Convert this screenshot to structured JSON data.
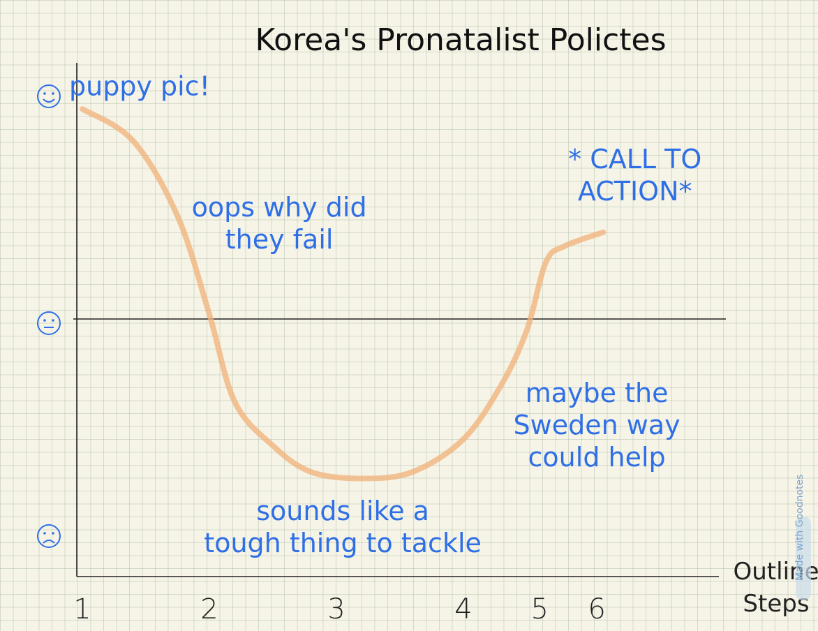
{
  "chart_data": {
    "type": "line",
    "title": "Korea's Pronatalist Polictes",
    "xlabel": "Outline Steps",
    "x_ticks": [
      "1",
      "2",
      "3",
      "4",
      "5",
      "6"
    ],
    "y_levels": [
      {
        "name": "happy-face",
        "value": 1
      },
      {
        "name": "neutral-face",
        "value": 0
      },
      {
        "name": "sad-face",
        "value": -1
      }
    ],
    "ylim": [
      -1.15,
      1.15
    ],
    "xlim": [
      1,
      6.1
    ],
    "series": [
      {
        "color": "#f0b27a",
        "points": [
          [
            1.0,
            0.92
          ],
          [
            1.4,
            0.78
          ],
          [
            1.75,
            0.45
          ],
          [
            2.0,
            0.02
          ],
          [
            2.2,
            -0.38
          ],
          [
            2.5,
            -0.58
          ],
          [
            2.8,
            -0.7
          ],
          [
            3.2,
            -0.73
          ],
          [
            3.6,
            -0.7
          ],
          [
            4.0,
            -0.55
          ],
          [
            4.3,
            -0.3
          ],
          [
            4.5,
            -0.05
          ],
          [
            4.65,
            0.25
          ],
          [
            4.8,
            0.32
          ],
          [
            5.1,
            0.38
          ]
        ]
      }
    ],
    "annotations": [
      {
        "lines": [
          "puppy pic!"
        ],
        "x": 1.45,
        "y": 0.98
      },
      {
        "lines": [
          "oops why did",
          "they fail"
        ],
        "x": 2.55,
        "y": 0.45
      },
      {
        "lines": [
          "sounds like a",
          "tough thing to tackle"
        ],
        "x": 3.05,
        "y": -0.92
      },
      {
        "lines": [
          "maybe the",
          "Sweden way",
          "could help"
        ],
        "x": 5.05,
        "y": -0.38
      },
      {
        "lines": [
          "* CALL TO",
          "ACTION*"
        ],
        "x": 5.35,
        "y": 0.66
      }
    ]
  },
  "watermark": "Made with Goodnotes"
}
